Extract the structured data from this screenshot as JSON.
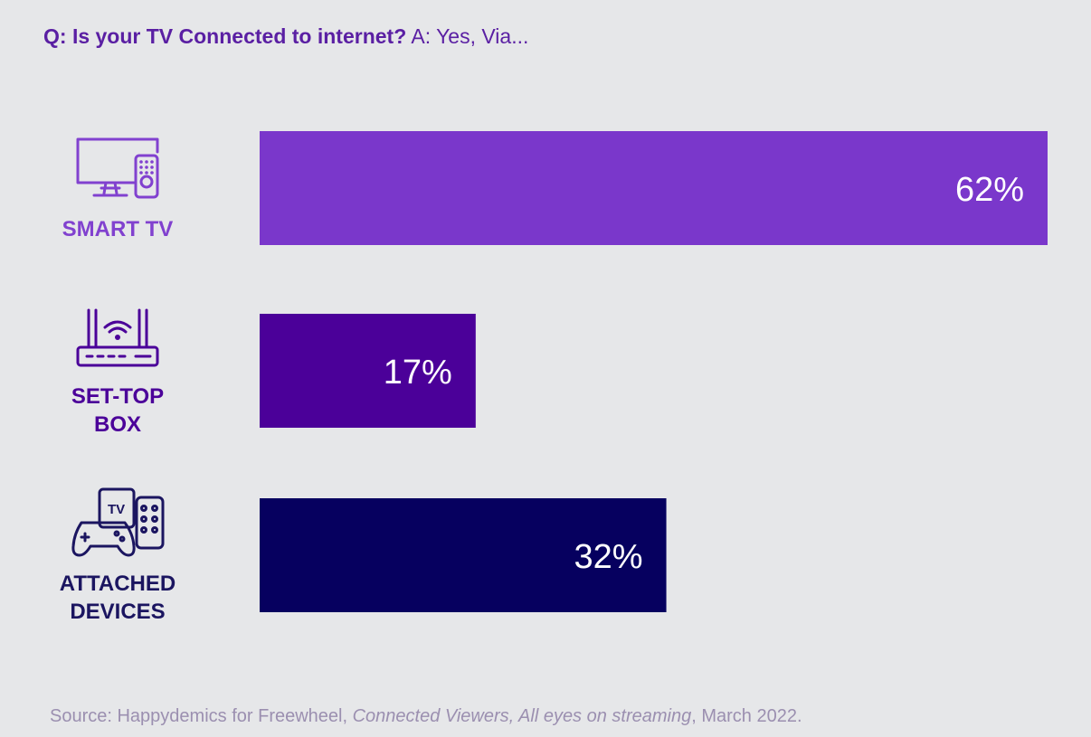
{
  "question": {
    "bold": "Q: Is your TV Connected to internet?",
    "rest": " A: Yes, Via..."
  },
  "source": {
    "prefix": "Source: Happydemics for Freewheel, ",
    "italic": "Connected Viewers, All eyes on streaming",
    "suffix": ", March 2022."
  },
  "icons": [
    "smart-tv-icon",
    "set-top-box-router-icon",
    "attached-devices-icon"
  ],
  "icon_texts": {
    "tv_badge": "TV"
  },
  "colors": {
    "background": "#e6e7e9",
    "smart_tv": "#7a37cb",
    "set_top_box": "#4b0099",
    "attached_devices": "#06005f",
    "label_smart_tv": "#8141cf",
    "label_set_top_box": "#4b0099",
    "label_attached_devices": "#1b1560",
    "question": "#5a1fa3",
    "source": "#9b8fb0"
  },
  "chart_data": {
    "type": "bar",
    "orientation": "horizontal",
    "categories": [
      "SMART TV",
      "SET-TOP BOX",
      "ATTACHED DEVICES"
    ],
    "category_lines": [
      [
        "SMART TV"
      ],
      [
        "SET-TOP",
        "BOX"
      ],
      [
        "ATTACHED",
        "DEVICES"
      ]
    ],
    "values": [
      62,
      17,
      32
    ],
    "value_labels": [
      "62%",
      "17%",
      "32%"
    ],
    "unit": "%",
    "xlim": [
      0,
      62
    ],
    "grid": false,
    "legend": "none"
  }
}
